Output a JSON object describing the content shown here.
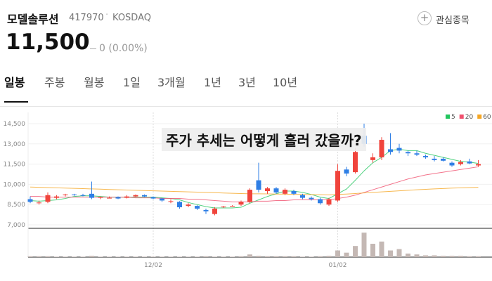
{
  "header": {
    "name": "모델솔루션",
    "code": "417970",
    "market": "KOSDAQ",
    "watch_button": "관심종목",
    "price": "11,500",
    "change": "0 (0.00%)"
  },
  "tabs": [
    "일봉",
    "주봉",
    "월봉",
    "1일",
    "3개월",
    "1년",
    "3년",
    "10년"
  ],
  "caption": "주가 추세는 어떻게 흘러 갔을까?",
  "chart_data": {
    "type": "candlestick",
    "categories": [
      null,
      null,
      null,
      null,
      null,
      null,
      null,
      null,
      null,
      null,
      null,
      null,
      null,
      null,
      "12/02",
      null,
      null,
      null,
      null,
      null,
      null,
      null,
      null,
      null,
      null,
      null,
      null,
      null,
      null,
      null,
      null,
      null,
      null,
      null,
      null,
      "01/02",
      null,
      null,
      null,
      null,
      null,
      null,
      null,
      null,
      null,
      null,
      null,
      null,
      null,
      null,
      null,
      null
    ],
    "ohlc": [
      [
        8900,
        9100,
        8600,
        8700
      ],
      [
        8600,
        8800,
        8500,
        8650
      ],
      [
        8700,
        9400,
        8600,
        9200
      ],
      [
        9000,
        9200,
        8900,
        9100
      ],
      [
        9200,
        9300,
        9100,
        9250
      ],
      [
        9250,
        9300,
        9150,
        9200
      ],
      [
        9200,
        9300,
        9100,
        9150
      ],
      [
        9300,
        10200,
        8900,
        9000
      ],
      [
        9000,
        9100,
        8900,
        9050
      ],
      [
        9000,
        9100,
        8950,
        9000
      ],
      [
        9050,
        9100,
        8900,
        8950
      ],
      [
        9000,
        9200,
        8950,
        9100
      ],
      [
        9100,
        9250,
        9050,
        9200
      ],
      [
        9200,
        9250,
        9050,
        9100
      ],
      [
        9050,
        9100,
        8900,
        8950
      ],
      [
        8950,
        9000,
        8700,
        8800
      ],
      [
        8700,
        8900,
        8600,
        8750
      ],
      [
        8700,
        8750,
        8200,
        8300
      ],
      [
        8400,
        8600,
        8300,
        8500
      ],
      [
        8400,
        8450,
        8100,
        8200
      ],
      [
        8100,
        8200,
        7800,
        8000
      ],
      [
        7800,
        8300,
        7700,
        8200
      ],
      [
        8300,
        8400,
        8250,
        8350
      ],
      [
        8400,
        8450,
        8350,
        8400
      ],
      [
        8500,
        8800,
        8400,
        8700
      ],
      [
        8700,
        9700,
        8600,
        9600
      ],
      [
        10300,
        11600,
        9400,
        9600
      ],
      [
        9500,
        9800,
        9300,
        9700
      ],
      [
        9700,
        9800,
        9300,
        9400
      ],
      [
        9300,
        9700,
        9200,
        9600
      ],
      [
        9500,
        9600,
        9200,
        9300
      ],
      [
        9200,
        9300,
        8900,
        9000
      ],
      [
        9000,
        9100,
        8800,
        8900
      ],
      [
        8900,
        9000,
        8500,
        8600
      ],
      [
        8500,
        9000,
        8400,
        8900
      ],
      [
        8800,
        11500,
        8700,
        11000
      ],
      [
        11100,
        11300,
        10600,
        10800
      ],
      [
        10900,
        12700,
        10800,
        12400
      ],
      [
        13600,
        14500,
        12800,
        13000
      ],
      [
        11800,
        12300,
        11600,
        12000
      ],
      [
        12000,
        13500,
        11800,
        13300
      ],
      [
        12600,
        13800,
        12200,
        12400
      ],
      [
        12700,
        13000,
        12300,
        12500
      ],
      [
        12400,
        12500,
        12100,
        12300
      ],
      [
        12300,
        12500,
        12100,
        12200
      ],
      [
        12100,
        12200,
        11900,
        12000
      ],
      [
        11900,
        12100,
        11700,
        11800
      ],
      [
        11900,
        12000,
        11700,
        11750
      ],
      [
        11600,
        11700,
        11300,
        11400
      ],
      [
        11500,
        11800,
        11400,
        11650
      ],
      [
        11700,
        11900,
        11500,
        11550
      ],
      [
        11400,
        11800,
        11300,
        11500
      ]
    ],
    "volume": [
      2,
      2,
      2,
      1,
      1,
      1,
      1,
      3,
      1,
      1,
      1,
      1,
      1,
      1,
      1,
      1,
      1,
      1,
      1,
      1,
      2,
      1,
      1,
      1,
      2,
      6,
      3,
      2,
      2,
      2,
      2,
      1,
      1,
      2,
      3,
      15,
      10,
      25,
      55,
      30,
      35,
      15,
      18,
      8,
      6,
      4,
      4,
      3,
      3,
      3,
      2,
      2
    ],
    "volume_lim": [
      0,
      60
    ],
    "series": [
      {
        "name": "5",
        "color": "#22c55e",
        "values": [
          8800,
          8750,
          8800,
          8850,
          8950,
          9100,
          9150,
          9150,
          9100,
          9050,
          9050,
          9050,
          9050,
          9050,
          9050,
          9000,
          8950,
          8850,
          8650,
          8500,
          8350,
          8250,
          8250,
          8250,
          8300,
          8600,
          8850,
          9100,
          9300,
          9500,
          9500,
          9400,
          9250,
          9050,
          8950,
          9300,
          9650,
          10300,
          11000,
          11600,
          12000,
          12500,
          12600,
          12500,
          12500,
          12300,
          12150,
          12000,
          11850,
          11700,
          11650,
          11550
        ]
      },
      {
        "name": "20",
        "color": "#f0506e",
        "values": [
          9100,
          9100,
          9050,
          9050,
          9050,
          9050,
          9050,
          9050,
          9050,
          9050,
          9050,
          9050,
          9000,
          9000,
          9000,
          8950,
          8950,
          8950,
          8900,
          8900,
          8850,
          8800,
          8750,
          8700,
          8700,
          8700,
          8750,
          8750,
          8800,
          8800,
          8850,
          8850,
          8850,
          8850,
          8850,
          8950,
          9050,
          9200,
          9400,
          9600,
          9800,
          10000,
          10200,
          10400,
          10550,
          10700,
          10800,
          10900,
          11000,
          11100,
          11200,
          11300
        ]
      },
      {
        "name": "60",
        "color": "#f5a623",
        "values": [
          9800,
          9780,
          9760,
          9740,
          9720,
          9700,
          9680,
          9660,
          9640,
          9620,
          9600,
          9580,
          9560,
          9540,
          9520,
          9500,
          9480,
          9460,
          9440,
          9420,
          9400,
          9380,
          9360,
          9340,
          9320,
          9300,
          9300,
          9290,
          9280,
          9270,
          9260,
          9250,
          9240,
          9230,
          9220,
          9250,
          9280,
          9320,
          9360,
          9400,
          9440,
          9480,
          9520,
          9560,
          9600,
          9630,
          9660,
          9690,
          9720,
          9740,
          9760,
          9780
        ]
      }
    ],
    "up_color": "#f0443c",
    "down_color": "#2f7fe5",
    "volume_color": "#c4b8b4",
    "ylim": [
      7000,
      14500
    ],
    "yticks": [
      {
        "value": 14500,
        "label": "14,500"
      },
      {
        "value": 13000,
        "label": "13,000"
      },
      {
        "value": 11500,
        "label": "11,500"
      },
      {
        "value": 10000,
        "label": "10,000"
      },
      {
        "value": 8500,
        "label": "8,500"
      },
      {
        "value": 7000,
        "label": "7,000"
      }
    ],
    "grid": true
  }
}
